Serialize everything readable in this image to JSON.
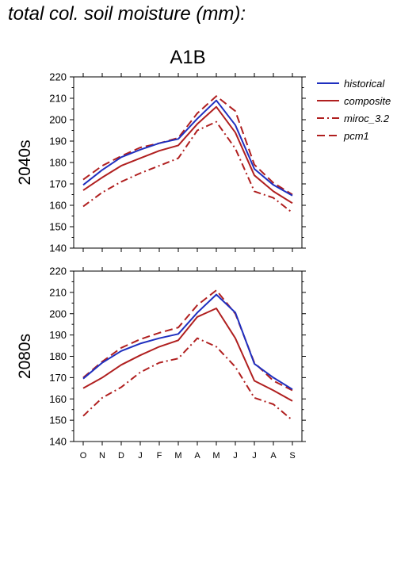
{
  "page_title": "total col. soil moisture (mm):",
  "chart_title": "A1B",
  "colors": {
    "blue": "#1f2fbf",
    "red": "#b01f1f"
  },
  "legend": [
    {
      "name": "historical",
      "color": "#1f2fbf",
      "dash": "solid"
    },
    {
      "name": "composite",
      "color": "#b01f1f",
      "dash": "solid"
    },
    {
      "name": "miroc_3.2",
      "color": "#b01f1f",
      "dash": "dashdot"
    },
    {
      "name": "pcm1",
      "color": "#b01f1f",
      "dash": "dash"
    }
  ],
  "chart_data": [
    {
      "type": "line",
      "title": "2040s",
      "ylabel": "2040s",
      "categories": [
        "O",
        "N",
        "D",
        "J",
        "F",
        "M",
        "A",
        "M",
        "J",
        "J",
        "A",
        "S"
      ],
      "ylim": [
        140,
        220
      ],
      "yticks": [
        140,
        150,
        160,
        170,
        180,
        190,
        200,
        210,
        220
      ],
      "grid": false,
      "legend_position": "right",
      "series": [
        {
          "name": "historical",
          "values": [
            169.5,
            176.5,
            182.5,
            186.0,
            189.0,
            191.0,
            200.5,
            209.0,
            197.5,
            177.0,
            169.5,
            164.5
          ]
        },
        {
          "name": "composite",
          "values": [
            167.0,
            173.0,
            178.5,
            182.0,
            185.5,
            188.0,
            198.0,
            206.0,
            194.0,
            174.0,
            166.5,
            161.0
          ]
        },
        {
          "name": "miroc_3.2",
          "values": [
            159.5,
            166.0,
            171.0,
            175.0,
            178.5,
            182.0,
            195.0,
            199.0,
            186.5,
            166.5,
            163.5,
            156.5
          ]
        },
        {
          "name": "pcm1",
          "values": [
            172.0,
            178.5,
            183.0,
            187.0,
            189.0,
            191.5,
            203.0,
            211.0,
            204.0,
            179.0,
            170.5,
            165.0
          ]
        }
      ]
    },
    {
      "type": "line",
      "title": "2080s",
      "ylabel": "2080s",
      "categories": [
        "O",
        "N",
        "D",
        "J",
        "F",
        "M",
        "A",
        "M",
        "J",
        "J",
        "A",
        "S"
      ],
      "ylim": [
        140,
        220
      ],
      "yticks": [
        140,
        150,
        160,
        170,
        180,
        190,
        200,
        210,
        220
      ],
      "grid": false,
      "legend_position": "right",
      "series": [
        {
          "name": "historical",
          "values": [
            169.5,
            177.0,
            182.5,
            186.0,
            188.5,
            190.5,
            200.5,
            209.0,
            200.5,
            176.5,
            170.0,
            164.5
          ]
        },
        {
          "name": "composite",
          "values": [
            165.0,
            170.0,
            176.0,
            180.5,
            184.5,
            187.5,
            198.5,
            202.5,
            188.5,
            168.5,
            164.0,
            159.0
          ]
        },
        {
          "name": "miroc_3.2",
          "values": [
            152.0,
            160.5,
            165.5,
            172.5,
            177.0,
            179.0,
            188.5,
            184.5,
            175.0,
            160.5,
            157.5,
            150.0
          ]
        },
        {
          "name": "pcm1",
          "values": [
            170.0,
            177.5,
            184.0,
            188.0,
            191.0,
            193.5,
            204.0,
            211.0,
            200.0,
            177.0,
            168.5,
            164.0
          ]
        }
      ]
    }
  ]
}
